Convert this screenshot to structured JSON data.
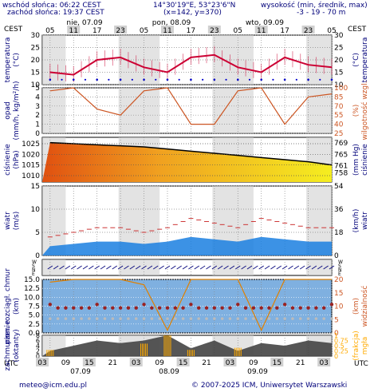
{
  "header": {
    "sunrise": "wschód słońca: 06:22 CEST",
    "sunset": "zachód słońca: 19:37 CEST",
    "coords": "14°30'19\"E, 53°23'6\"N",
    "grid": "(x=142, y=370)",
    "elevation_label": "wysokość (min, średnik, max)",
    "elevation_values": "-3 - 19 - 70 m"
  },
  "timezone_left": "CEST",
  "timezone_right": "CEST",
  "days_top": [
    "nie, 07.09",
    "pon, 08.09",
    "wto, 09.09"
  ],
  "hours_top": [
    "05",
    "11",
    "17",
    "23",
    "05",
    "11",
    "17",
    "23",
    "05",
    "11",
    "17",
    "23",
    "05"
  ],
  "hours_bottom": [
    "03",
    "09",
    "15",
    "21",
    "03",
    "09",
    "15",
    "21",
    "03",
    "09",
    "15",
    "21",
    "03"
  ],
  "days_bottom": [
    "07.09",
    "08.09",
    "09.09"
  ],
  "utc_left": "UTC",
  "utc_right": "UTC",
  "footer": {
    "email": "meteo@icm.edu.pl",
    "copyright": "© 2007-2025 ICM, Uniwersytet Warszawski"
  },
  "colors": {
    "temperature": "#cc0033",
    "dewpoint": "#0000cc",
    "humidity": "#cc5522",
    "precip": "#00aa00",
    "wind": "#3366cc",
    "gust": "#cc3333",
    "clouds": "#444444",
    "fog": "#ffaa00",
    "night": "#d0d0d0",
    "low_cloud_bg": "#7fb0e0"
  },
  "chart_data": [
    {
      "type": "line",
      "name": "temperature",
      "left_label": "temperatura (°C)",
      "right_label": "temperatura (°C)",
      "yticks": [
        10,
        15,
        20,
        25,
        30
      ],
      "ylim": [
        10,
        30
      ],
      "x_hours": [
        0,
        6,
        12,
        18,
        24,
        30,
        36,
        42,
        48,
        54,
        60,
        66,
        72
      ],
      "temperature": [
        15,
        14,
        20,
        21,
        17,
        15,
        21,
        22,
        17,
        15,
        21,
        18,
        17
      ],
      "dewpoint": [
        12,
        12,
        12,
        12,
        12,
        12,
        12,
        12,
        12,
        12,
        12,
        12,
        12
      ]
    },
    {
      "type": "line",
      "name": "precip_humidity",
      "left_label": "opad (mm/h, kg/m²/h)",
      "right_label": "wilgotność wzgl. (%)",
      "yticks_left": [
        0,
        1,
        2,
        3,
        4,
        5
      ],
      "yticks_right": [
        25,
        40,
        55,
        70,
        85,
        100
      ],
      "x_hours": [
        0,
        6,
        12,
        18,
        24,
        30,
        36,
        42,
        48,
        54,
        60,
        66,
        72
      ],
      "humidity": [
        95,
        100,
        65,
        55,
        95,
        100,
        40,
        40,
        95,
        100,
        40,
        85,
        90
      ]
    },
    {
      "type": "area",
      "name": "pressure",
      "left_label": "ciśnienie (hPa)",
      "right_label": "ciśnienie (mm Hg)",
      "yticks_left": [
        1010,
        1015,
        1020,
        1025
      ],
      "yticks_right": [
        758,
        761,
        765,
        769
      ],
      "ylim": [
        1007,
        1028
      ],
      "x_hours": [
        0,
        6,
        12,
        18,
        24,
        30,
        36,
        42,
        48,
        54,
        60,
        66,
        72
      ],
      "pressure": [
        1025.5,
        1025,
        1024.5,
        1024,
        1023.5,
        1022.5,
        1021.5,
        1020.5,
        1019.5,
        1018.5,
        1017.5,
        1016.5,
        1015
      ]
    },
    {
      "type": "area",
      "name": "wind",
      "left_label": "wiatr (m/s)",
      "right_label": "wiatr (km/h)",
      "yticks_left": [
        0,
        5,
        10,
        15
      ],
      "yticks_right": [
        0,
        18,
        36,
        54
      ],
      "ylim": [
        0,
        15
      ],
      "x_hours": [
        0,
        6,
        12,
        18,
        24,
        30,
        36,
        42,
        48,
        54,
        60,
        66,
        72
      ],
      "wind": [
        2,
        2.5,
        3,
        3,
        2.5,
        3,
        4,
        3.5,
        3,
        4,
        3.5,
        3,
        3
      ],
      "gust": [
        4,
        5,
        6,
        6,
        5,
        6,
        8,
        7,
        6,
        8,
        7,
        6,
        6
      ]
    },
    {
      "type": "scatter",
      "name": "wind_direction",
      "left_label": "W S N E",
      "right_label": "W S N E"
    },
    {
      "type": "scatter",
      "name": "clouds_visibility",
      "left_label": "pion. rozciągł. chmur (km)",
      "right_label": "widzialność (km)",
      "yticks_left": [
        0,
        2.5,
        5,
        7.5,
        10,
        12.5,
        15
      ],
      "yticks_left_labels": [
        "0.0",
        "2.5",
        "5.0",
        "7.5",
        "10.0",
        "12.5",
        "15.0"
      ],
      "yticks_right": [
        0,
        5,
        10,
        15,
        20
      ],
      "x_hours": [
        0,
        6,
        12,
        18,
        24,
        30,
        36,
        42,
        48,
        54,
        60,
        66,
        72
      ],
      "visibility": [
        19,
        20,
        20,
        20,
        18,
        1,
        20,
        20,
        20,
        1,
        20,
        20,
        20
      ]
    },
    {
      "type": "area",
      "name": "cloud_cover_fog",
      "left_label": "zachmurzenie (oktanty)",
      "right_label": "mgła (frakcja)",
      "yticks_left": [
        0,
        2,
        4,
        6,
        8
      ],
      "yticks_right": [
        "0",
        "0.25",
        "0.5",
        "0.75",
        "1"
      ],
      "x_hours": [
        0,
        6,
        12,
        18,
        24,
        30,
        36,
        42,
        48,
        54,
        60,
        66,
        72
      ],
      "cloud_cover": [
        2,
        4,
        6,
        5,
        6,
        8,
        3,
        6,
        2,
        5,
        4,
        6,
        5
      ],
      "fog": [
        0.3,
        0,
        0,
        0,
        0.6,
        1,
        0.3,
        0,
        0.4,
        0,
        0,
        0,
        0
      ]
    }
  ]
}
